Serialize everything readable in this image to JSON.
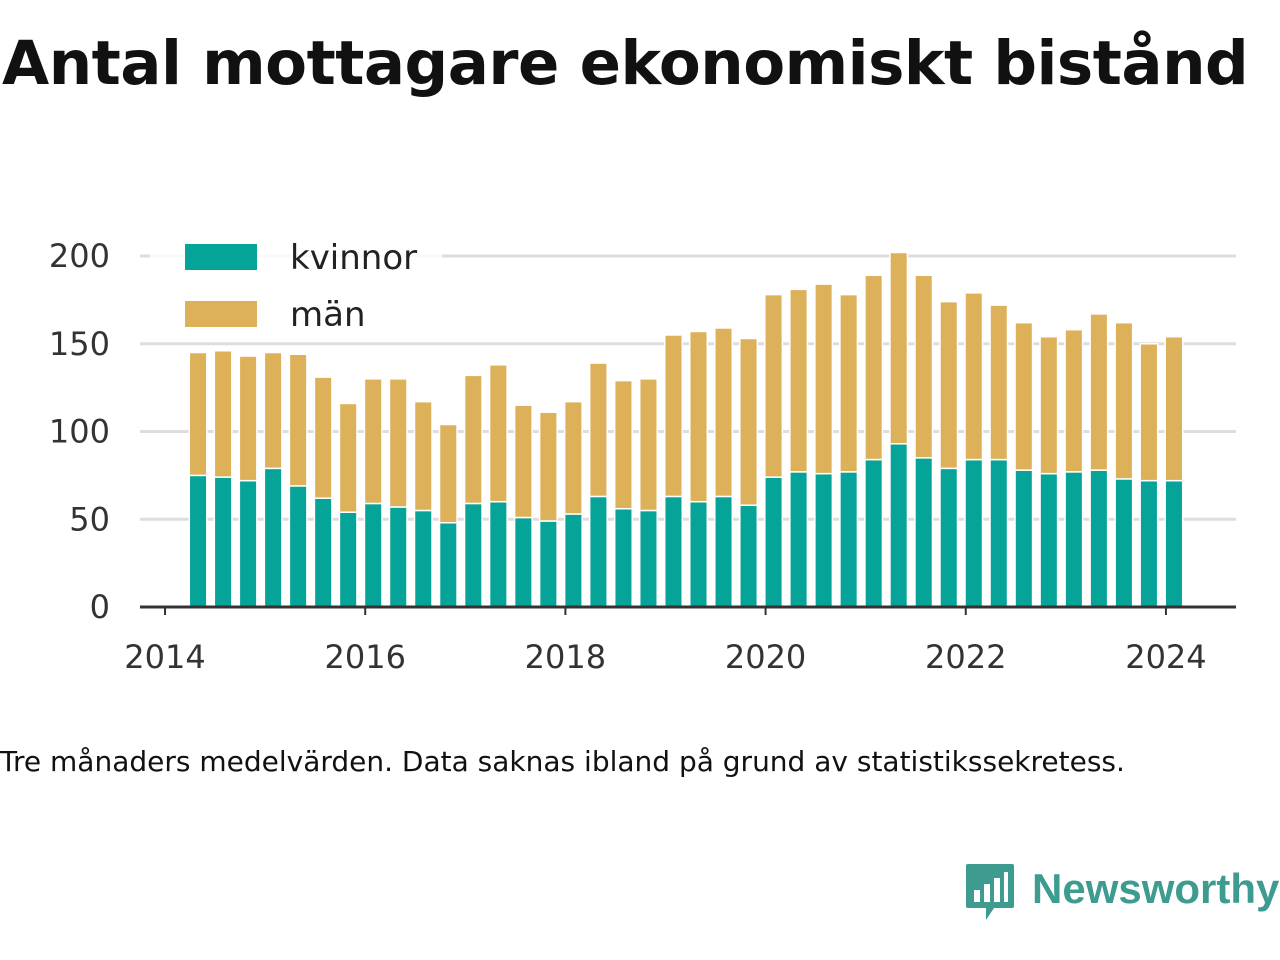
{
  "title": "Antal mottagare ekonomiskt bistånd",
  "note": "Tre månaders medelvärden. Data saknas ibland på grund av statistikssekretess.",
  "brand": {
    "name": "Newsworthy",
    "color": "#3d9b8f",
    "icon": "bar-chart-speech-bubble-icon"
  },
  "chart_data": {
    "type": "bar",
    "stacked": true,
    "title": "Antal mottagare ekonomiskt bistånd",
    "xlabel": "",
    "ylabel": "",
    "ylim": [
      0,
      200
    ],
    "yticks": [
      0,
      50,
      100,
      150,
      200
    ],
    "xticks": [
      "2014",
      "2016",
      "2018",
      "2020",
      "2022",
      "2024"
    ],
    "xlim": [
      2013.75,
      2024.7
    ],
    "grid": true,
    "legend_position": "top-left",
    "x": [
      2014.33,
      2014.58,
      2014.83,
      2015.08,
      2015.33,
      2015.58,
      2015.83,
      2016.08,
      2016.33,
      2016.58,
      2016.83,
      2017.08,
      2017.33,
      2017.58,
      2017.83,
      2018.08,
      2018.33,
      2018.58,
      2018.83,
      2019.08,
      2019.33,
      2019.58,
      2019.83,
      2020.08,
      2020.33,
      2020.58,
      2020.83,
      2021.08,
      2021.33,
      2021.58,
      2021.83,
      2022.08,
      2022.33,
      2022.58,
      2022.83,
      2023.08,
      2023.33,
      2023.58,
      2023.83,
      2024.08
    ],
    "series": [
      {
        "name": "kvinnor",
        "color": "#05a398",
        "values": [
          75,
          74,
          72,
          79,
          69,
          62,
          54,
          59,
          57,
          55,
          48,
          59,
          60,
          51,
          49,
          53,
          63,
          56,
          55,
          63,
          60,
          63,
          58,
          74,
          77,
          76,
          77,
          84,
          93,
          85,
          79,
          84,
          84,
          78,
          76,
          77,
          78,
          73,
          72,
          72
        ]
      },
      {
        "name": "män",
        "color": "#ddb05a",
        "values": [
          70,
          72,
          71,
          66,
          75,
          69,
          62,
          71,
          73,
          62,
          56,
          73,
          78,
          64,
          62,
          64,
          76,
          73,
          75,
          92,
          97,
          96,
          95,
          104,
          104,
          108,
          101,
          105,
          109,
          104,
          95,
          95,
          88,
          84,
          78,
          81,
          89,
          89,
          78,
          82
        ]
      }
    ]
  }
}
